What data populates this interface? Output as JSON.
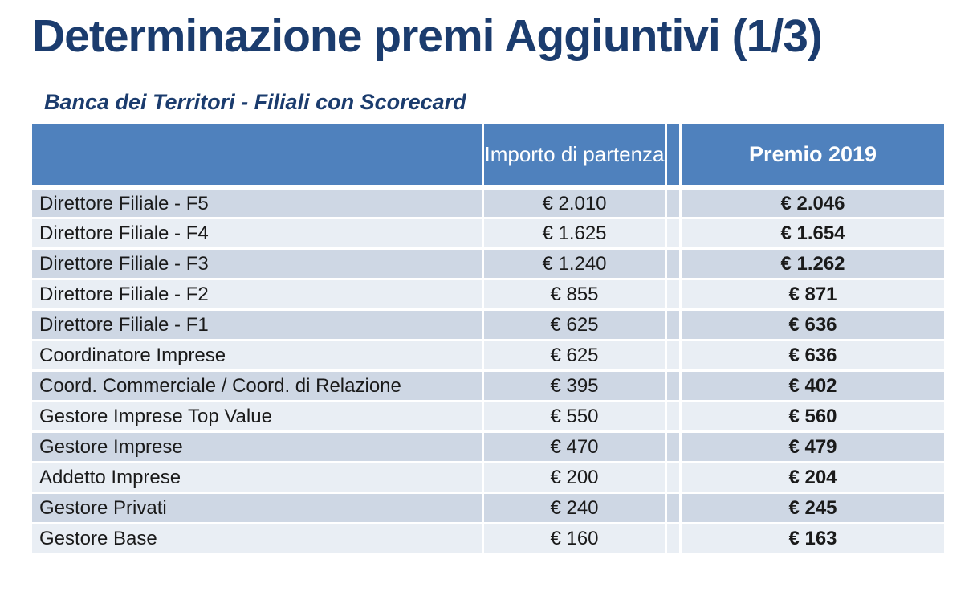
{
  "slide": {
    "title": "Determinazione premi Aggiuntivi (1/3)",
    "subtitle": "Banca dei Territori - Filiali con Scorecard"
  },
  "table": {
    "columns": {
      "role_header": "",
      "importo_header": "Importo di partenza",
      "premio_header": "Premio 2019"
    },
    "rows": [
      {
        "role": "Direttore Filiale - F5",
        "importo": "€ 2.010",
        "premio": "€ 2.046"
      },
      {
        "role": "Direttore Filiale - F4",
        "importo": "€ 1.625",
        "premio": "€ 1.654"
      },
      {
        "role": "Direttore Filiale - F3",
        "importo": "€ 1.240",
        "premio": "€ 1.262"
      },
      {
        "role": "Direttore Filiale - F2",
        "importo": "€ 855",
        "premio": "€ 871"
      },
      {
        "role": "Direttore Filiale - F1",
        "importo": "€ 625",
        "premio": "€ 636"
      },
      {
        "role": "Coordinatore Imprese",
        "importo": "€ 625",
        "premio": "€ 636"
      },
      {
        "role": "Coord. Commerciale / Coord. di Relazione",
        "importo": "€ 395",
        "premio": "€ 402"
      },
      {
        "role": "Gestore Imprese Top Value",
        "importo": "€ 550",
        "premio": "€ 560"
      },
      {
        "role": "Gestore Imprese",
        "importo": "€ 470",
        "premio": "€ 479"
      },
      {
        "role": "Addetto Imprese",
        "importo": "€ 200",
        "premio": "€ 204"
      },
      {
        "role": "Gestore Privati",
        "importo": "€ 240",
        "premio": "€ 245"
      },
      {
        "role": "Gestore Base",
        "importo": "€ 160",
        "premio": "€ 163"
      }
    ]
  },
  "colors": {
    "title_navy": "#1B3C6E",
    "header_blue": "#4F81BD",
    "row_dark": "#CED7E4",
    "row_light": "#E9EEF4",
    "header_text": "#FFFFFF",
    "body_text": "#1A1A1A"
  }
}
